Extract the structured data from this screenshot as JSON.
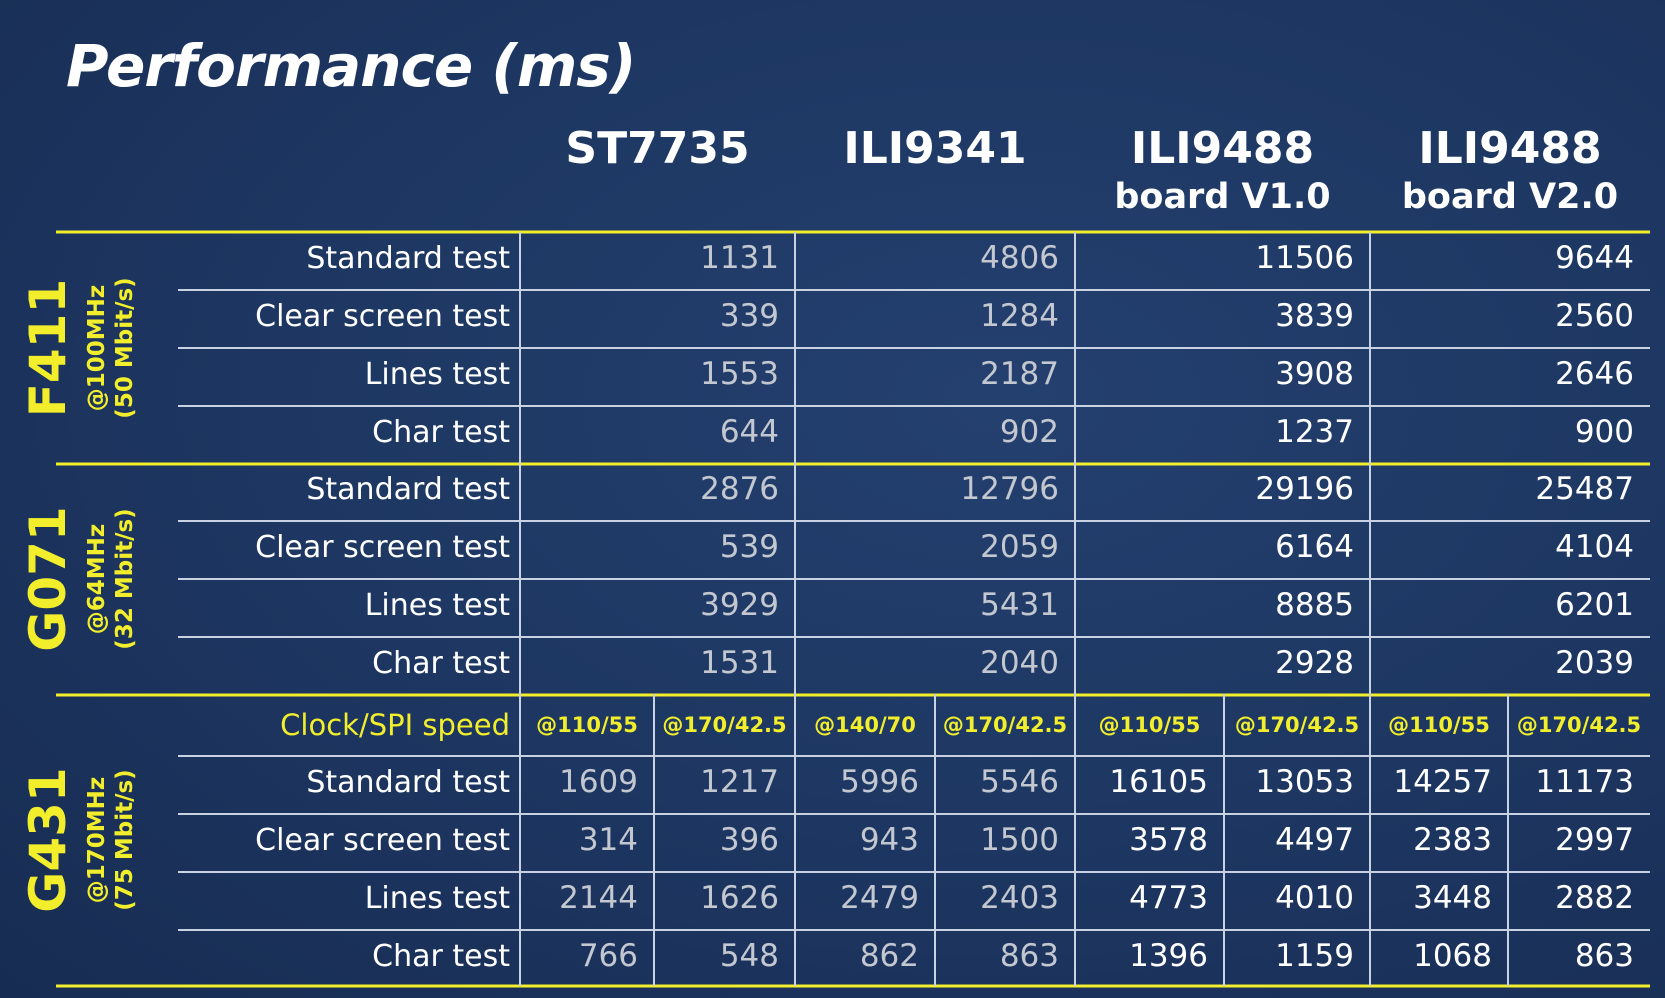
{
  "title": "Performance (ms)",
  "colors": {
    "background": "#1d3661",
    "accent_yellow": "#f2ee2c",
    "grid_line": "#c9d2e3",
    "dim_value": "#c3c7cf",
    "bright_value": "#ffffff"
  },
  "chart_data": {
    "type": "table",
    "title": "Performance (ms)",
    "columns": [
      {
        "name": "ST7735",
        "sub": ""
      },
      {
        "name": "ILI9341",
        "sub": ""
      },
      {
        "name": "ILI9488",
        "sub": "board V1.0"
      },
      {
        "name": "ILI9488",
        "sub": "board V2.0"
      }
    ],
    "groups": [
      {
        "name": "F411",
        "clock": "@100MHz",
        "spi": "(50 Mbit/s)",
        "rows": [
          {
            "label": "Standard test",
            "values": [
              1131,
              4806,
              11506,
              9644
            ]
          },
          {
            "label": "Clear screen test",
            "values": [
              339,
              1284,
              3839,
              2560
            ]
          },
          {
            "label": "Lines test",
            "values": [
              1553,
              2187,
              3908,
              2646
            ]
          },
          {
            "label": "Char test",
            "values": [
              644,
              902,
              1237,
              900
            ]
          }
        ]
      },
      {
        "name": "G071",
        "clock": "@64MHz",
        "spi": "(32 Mbit/s)",
        "rows": [
          {
            "label": "Standard test",
            "values": [
              2876,
              12796,
              29196,
              25487
            ]
          },
          {
            "label": "Clear screen test",
            "values": [
              539,
              2059,
              6164,
              4104
            ]
          },
          {
            "label": "Lines test",
            "values": [
              3929,
              5431,
              8885,
              6201
            ]
          },
          {
            "label": "Char test",
            "values": [
              1531,
              2040,
              2928,
              2039
            ]
          }
        ]
      },
      {
        "name": "G431",
        "clock": "@170MHz",
        "spi": "(75 Mbit/s)",
        "clock_row_label": "Clock/SPI speed",
        "clock_settings": [
          "@110/55",
          "@170/42.5",
          "@140/70",
          "@170/42.5",
          "@110/55",
          "@170/42.5",
          "@110/55",
          "@170/42.5"
        ],
        "rows": [
          {
            "label": "Standard test",
            "values": [
              1609,
              1217,
              5996,
              5546,
              16105,
              13053,
              14257,
              11173
            ]
          },
          {
            "label": "Clear screen test",
            "values": [
              314,
              396,
              943,
              1500,
              3578,
              4497,
              2383,
              2997
            ]
          },
          {
            "label": "Lines test",
            "values": [
              2144,
              1626,
              2479,
              2403,
              4773,
              4010,
              3448,
              2882
            ]
          },
          {
            "label": "Char test",
            "values": [
              766,
              548,
              862,
              863,
              1396,
              1159,
              1068,
              863
            ]
          }
        ]
      }
    ]
  }
}
